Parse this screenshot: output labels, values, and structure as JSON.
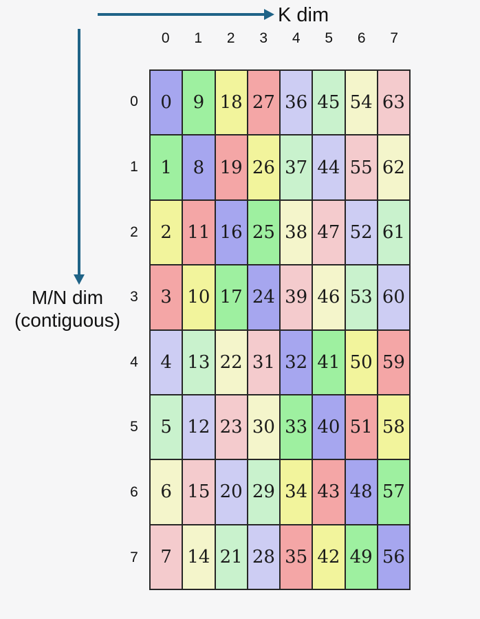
{
  "labels": {
    "k_dim": "K dim",
    "mn_dim_line1": "M/N dim",
    "mn_dim_line2": "(contiguous)"
  },
  "col_headers": [
    "0",
    "1",
    "2",
    "3",
    "4",
    "5",
    "6",
    "7"
  ],
  "row_headers": [
    "0",
    "1",
    "2",
    "3",
    "4",
    "5",
    "6",
    "7"
  ],
  "grid": {
    "rows": [
      [
        0,
        9,
        18,
        27,
        36,
        45,
        54,
        63
      ],
      [
        1,
        8,
        19,
        26,
        37,
        44,
        55,
        62
      ],
      [
        2,
        11,
        16,
        25,
        38,
        47,
        52,
        61
      ],
      [
        3,
        10,
        17,
        24,
        39,
        46,
        53,
        60
      ],
      [
        4,
        13,
        22,
        31,
        32,
        41,
        50,
        59
      ],
      [
        5,
        12,
        23,
        30,
        33,
        40,
        51,
        58
      ],
      [
        6,
        15,
        20,
        29,
        34,
        43,
        48,
        57
      ],
      [
        7,
        14,
        21,
        28,
        35,
        42,
        49,
        56
      ]
    ],
    "color_rule": "value mod 8",
    "palette": [
      "#a6a6ef",
      "#9ef0a0",
      "#f2f49c",
      "#f4a6a6",
      "#cdcdf3",
      "#c9f2cd",
      "#f4f5cb",
      "#f4cbcd"
    ]
  },
  "colors": {
    "arrow": "#1f6387",
    "cell_border": "#262626",
    "background": "#f6f6f7",
    "text": "#111111"
  }
}
